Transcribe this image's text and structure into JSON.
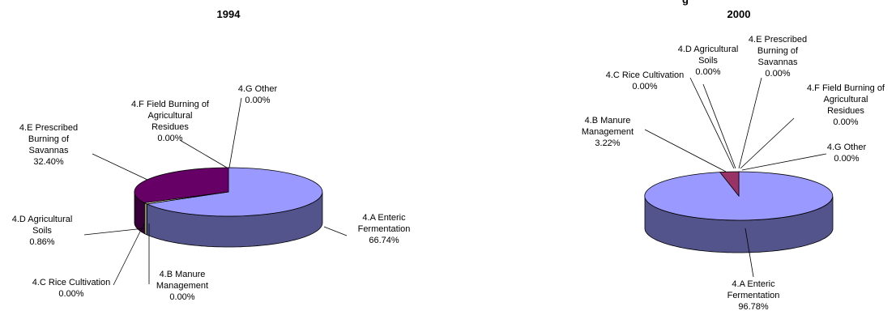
{
  "header": {
    "title_fragment": "g"
  },
  "chart_data": [
    {
      "type": "pie",
      "title": "1994",
      "slices": [
        {
          "label": "4.A Enteric Fermentation",
          "value": 66.74,
          "pct": "66.74%",
          "color": "#9999ff"
        },
        {
          "label": "4.B Manure Management",
          "value": 0.0,
          "pct": "0.00%",
          "color": "#993366"
        },
        {
          "label": "4.C Rice Cultivation",
          "value": 0.0,
          "pct": "0.00%",
          "color": "#ffffcc"
        },
        {
          "label": "4.D Agricultural Soils",
          "value": 0.86,
          "pct": "0.86%",
          "color": "#ffffcc"
        },
        {
          "label": "4.E Prescribed Burning of Savannas",
          "value": 32.4,
          "pct": "32.40%",
          "color": "#660066"
        },
        {
          "label": "4.F Field Burning of Agricultural Residues",
          "value": 0.0,
          "pct": "0.00%",
          "color": "#ff8080"
        },
        {
          "label": "4.G Other",
          "value": 0.0,
          "pct": "0.00%",
          "color": "#0066cc"
        }
      ]
    },
    {
      "type": "pie",
      "title": "2000",
      "slices": [
        {
          "label": "4.A Enteric Fermentation",
          "value": 96.78,
          "pct": "96.78%",
          "color": "#9999ff"
        },
        {
          "label": "4.B Manure Management",
          "value": 3.22,
          "pct": "3.22%",
          "color": "#993366"
        },
        {
          "label": "4.C Rice Cultivation",
          "value": 0.0,
          "pct": "0.00%",
          "color": "#ffffcc"
        },
        {
          "label": "4.D Agricultural Soils",
          "value": 0.0,
          "pct": "0.00%",
          "color": "#ccffff"
        },
        {
          "label": "4.E Prescribed Burning of Savannas",
          "value": 0.0,
          "pct": "0.00%",
          "color": "#660066"
        },
        {
          "label": "4.F Field Burning of Agricultural Residues",
          "value": 0.0,
          "pct": "0.00%",
          "color": "#ff8080"
        },
        {
          "label": "4.G Other",
          "value": 0.0,
          "pct": "0.00%",
          "color": "#0066cc"
        }
      ]
    }
  ]
}
